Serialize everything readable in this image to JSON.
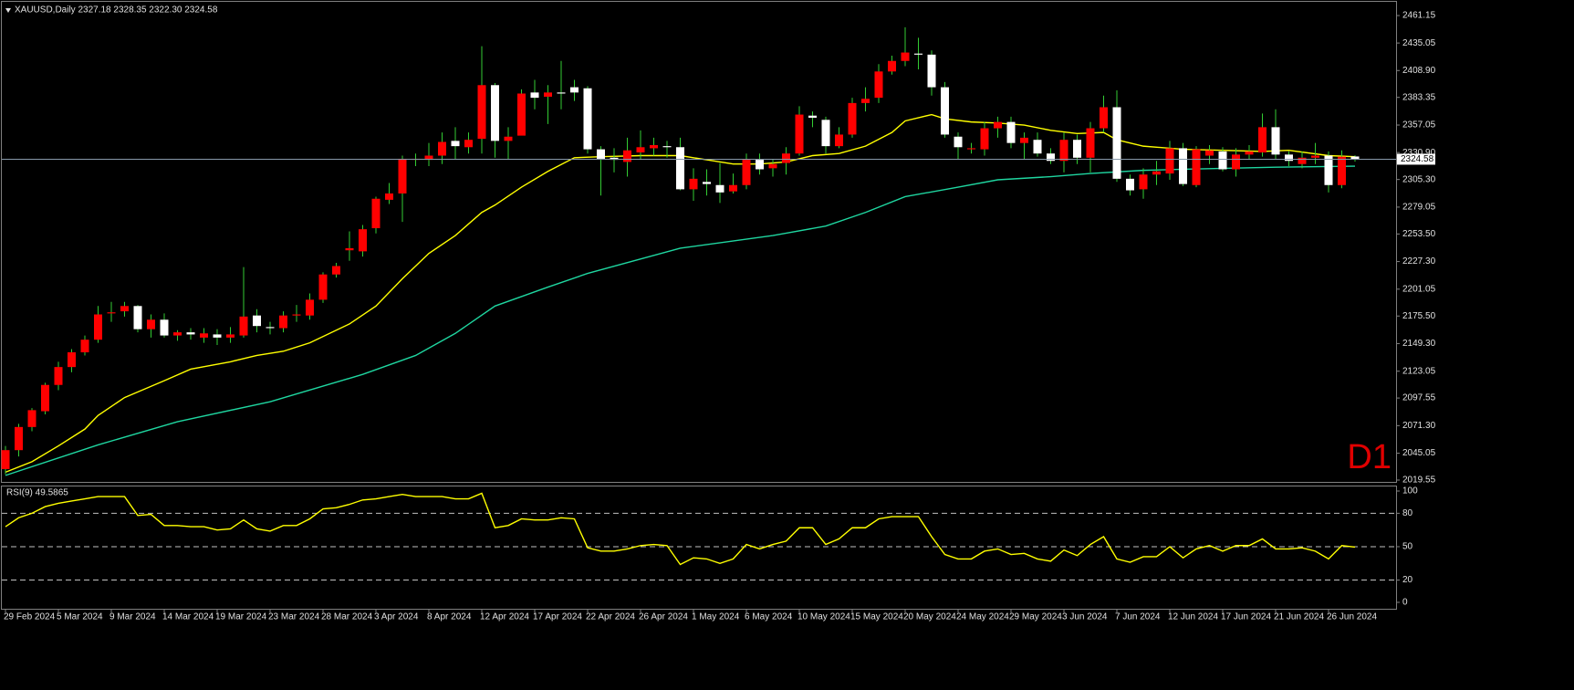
{
  "chart_data": [
    {
      "type": "candlestick",
      "title": "XAUUSD,Daily  2327.18 2328.35 2322.30 2324.58",
      "timeframe_label": "D1",
      "categories": [
        "29 Feb 2024",
        null,
        null,
        null,
        "5 Mar 2024",
        null,
        null,
        null,
        "9 Mar 2024",
        null,
        null,
        null,
        "14 Mar 2024",
        null,
        null,
        null,
        "19 Mar 2024",
        null,
        null,
        null,
        "23 Mar 2024",
        null,
        null,
        null,
        "28 Mar 2024",
        null,
        null,
        null,
        "3 Apr 2024",
        null,
        null,
        null,
        "8 Apr 2024",
        null,
        null,
        null,
        "12 Apr 2024",
        null,
        null,
        null,
        "17 Apr 2024",
        null,
        null,
        null,
        "22 Apr 2024",
        null,
        null,
        null,
        "26 Apr 2024",
        null,
        null,
        null,
        "1 May 2024",
        null,
        null,
        null,
        "6 May 2024",
        null,
        null,
        null,
        "10 May 2024",
        null,
        null,
        null,
        "15 May 2024",
        null,
        null,
        null,
        "20 May 2024",
        null,
        null,
        null,
        "24 May 2024",
        null,
        null,
        null,
        "29 May 2024",
        null,
        null,
        null,
        "3 Jun 2024",
        null,
        null,
        null,
        "7 Jun 2024",
        null,
        null,
        null,
        "12 Jun 2024",
        null,
        null,
        null,
        "17 Jun 2024",
        null,
        null,
        null,
        "21 Jun 2024",
        null,
        null,
        null,
        "26 Jun 2024",
        null,
        null
      ],
      "open": [
        2030,
        2048,
        2070,
        2085,
        2110,
        2127,
        2141,
        2153,
        2178,
        2180,
        2185,
        2163,
        2172,
        2157,
        2160,
        2155,
        2158,
        2155,
        2157,
        2176,
        2165,
        2164,
        2176,
        2176,
        2191,
        2215,
        2238,
        2237,
        2259,
        2286,
        2292,
        2324,
        2324,
        2328,
        2342,
        2336,
        2344,
        2395,
        2342,
        2347,
        2388,
        2384,
        2388,
        2393,
        2392,
        2334,
        2326,
        2322,
        2331,
        2335,
        2337,
        2336,
        2296,
        2303,
        2300,
        2294,
        2300,
        2324,
        2316,
        2321,
        2330,
        2366,
        2362,
        2337,
        2348,
        2378,
        2383,
        2408,
        2418,
        2425,
        2424,
        2393,
        2346,
        2334,
        2334,
        2354,
        2360,
        2340,
        2343,
        2330,
        2323,
        2343,
        2326,
        2354,
        2374,
        2306,
        2296,
        2310,
        2311,
        2335,
        2300,
        2328,
        2332,
        2315,
        2329,
        2331,
        2355,
        2329,
        2320,
        2326,
        2328,
        2300,
        2327.18
      ],
      "high": [
        2052,
        2073,
        2088,
        2112,
        2132,
        2144,
        2157,
        2185,
        2189,
        2189,
        2186,
        2177,
        2178,
        2162,
        2164,
        2164,
        2163,
        2165,
        2222,
        2182,
        2170,
        2180,
        2186,
        2197,
        2217,
        2226,
        2256,
        2262,
        2289,
        2302,
        2328,
        2330,
        2340,
        2350,
        2355,
        2350,
        2432,
        2397,
        2355,
        2391,
        2400,
        2395,
        2418,
        2400,
        2394,
        2337,
        2335,
        2345,
        2352,
        2345,
        2342,
        2345,
        2316,
        2315,
        2321,
        2311,
        2330,
        2330,
        2325,
        2336,
        2375,
        2370,
        2365,
        2355,
        2383,
        2393,
        2415,
        2423,
        2450,
        2440,
        2428,
        2398,
        2350,
        2340,
        2360,
        2365,
        2365,
        2350,
        2350,
        2335,
        2350,
        2348,
        2360,
        2385,
        2390,
        2310,
        2316,
        2323,
        2342,
        2340,
        2337,
        2338,
        2336,
        2335,
        2338,
        2368,
        2372,
        2332,
        2332,
        2340,
        2332,
        2333,
        2328.35
      ],
      "low": [
        2025,
        2042,
        2066,
        2082,
        2105,
        2122,
        2138,
        2150,
        2170,
        2175,
        2160,
        2155,
        2155,
        2152,
        2153,
        2150,
        2148,
        2150,
        2155,
        2160,
        2158,
        2160,
        2170,
        2172,
        2188,
        2212,
        2228,
        2232,
        2254,
        2282,
        2265,
        2318,
        2318,
        2320,
        2325,
        2330,
        2330,
        2326,
        2325,
        2348,
        2372,
        2358,
        2372,
        2380,
        2330,
        2290,
        2312,
        2308,
        2324,
        2328,
        2326,
        2295,
        2285,
        2290,
        2283,
        2292,
        2296,
        2310,
        2308,
        2310,
        2328,
        2355,
        2330,
        2335,
        2345,
        2370,
        2378,
        2405,
        2413,
        2410,
        2385,
        2345,
        2325,
        2330,
        2328,
        2345,
        2335,
        2325,
        2327,
        2320,
        2312,
        2320,
        2312,
        2350,
        2303,
        2290,
        2287,
        2300,
        2305,
        2299,
        2298,
        2320,
        2313,
        2308,
        2324,
        2327,
        2325,
        2318,
        2316,
        2320,
        2293,
        2297,
        2322.3
      ],
      "close": [
        2048,
        2070,
        2086,
        2110,
        2127,
        2141,
        2153,
        2177,
        2179,
        2185,
        2163,
        2172,
        2157,
        2160,
        2158,
        2159,
        2155,
        2158,
        2175,
        2166,
        2164,
        2176,
        2177,
        2191,
        2215,
        2223,
        2240,
        2258,
        2287,
        2292,
        2325,
        2325,
        2328,
        2341,
        2337,
        2343,
        2395,
        2342,
        2346,
        2387,
        2383,
        2388,
        2387,
        2388,
        2334,
        2325,
        2324,
        2333,
        2336,
        2338,
        2336,
        2296,
        2306,
        2301,
        2293,
        2300,
        2324,
        2315,
        2320,
        2330,
        2367,
        2364,
        2337,
        2348,
        2378,
        2382,
        2408,
        2418,
        2426,
        2424,
        2393,
        2348,
        2336,
        2335,
        2354,
        2360,
        2340,
        2345,
        2330,
        2323,
        2343,
        2326,
        2354,
        2374,
        2306,
        2295,
        2310,
        2313,
        2335,
        2301,
        2334,
        2333,
        2315,
        2329,
        2332,
        2355,
        2329,
        2323,
        2326,
        2328,
        2300,
        2327,
        2324.58
      ],
      "up_color": "#ff0000",
      "down_color": "#ffffff",
      "wick_color": "#33cc33",
      "price_line_color": "#8899aa",
      "overlays": [
        {
          "color": "#ffff00",
          "x": [
            0,
            2,
            4,
            6,
            7,
            9,
            12,
            14,
            17,
            19,
            21,
            23,
            26,
            28,
            30,
            32,
            34,
            36,
            37,
            39,
            41,
            43,
            45,
            48,
            51,
            53,
            55,
            57,
            59,
            61,
            63,
            65,
            67,
            68,
            70,
            71,
            73,
            75,
            77,
            79,
            81,
            83,
            84,
            86,
            89,
            92,
            95,
            97,
            100,
            102
          ],
          "values": [
            2027,
            2037,
            2052,
            2068,
            2081,
            2098,
            2114,
            2125,
            2132,
            2138,
            2142,
            2150,
            2168,
            2185,
            2211,
            2235,
            2252,
            2274,
            2281,
            2298,
            2313,
            2326,
            2327,
            2328,
            2328,
            2324,
            2320,
            2320,
            2322,
            2328,
            2330,
            2337,
            2350,
            2361,
            2367,
            2363,
            2360,
            2359,
            2357,
            2352,
            2349,
            2350,
            2343,
            2337,
            2334,
            2333,
            2332,
            2333,
            2328,
            2327
          ]
        },
        {
          "color": "#1fd6a0",
          "x": [
            0,
            7,
            13,
            20,
            27,
            31,
            34,
            37,
            41,
            44,
            51,
            58,
            62,
            65,
            68,
            72,
            75,
            79,
            82,
            86,
            89,
            96,
            102
          ],
          "values": [
            2024,
            2053,
            2075,
            2094,
            2120,
            2138,
            2159,
            2185,
            2203,
            2216,
            2240,
            2252,
            2261,
            2274,
            2289,
            2298,
            2305,
            2308,
            2311,
            2314,
            2315,
            2317,
            2318
          ]
        }
      ],
      "ylim": [
        2017.8,
        2471.6
      ],
      "yticks": [
        2461.15,
        2435.05,
        {
          "value": 2408.9,
          "label": "2408.90"
        },
        2383.35,
        2357.05,
        {
          "value": 2330.9,
          "label": "2330.90"
        },
        {
          "value": 2305.3,
          "label": "2305.30"
        },
        2279.05,
        {
          "value": 2253.5,
          "label": "2253.50"
        },
        {
          "value": 2227.3,
          "label": "2227.30"
        },
        2201.05,
        {
          "value": 2175.5,
          "label": "2175.50"
        },
        {
          "value": 2149.3,
          "label": "2149.30"
        },
        2123.05,
        2097.55,
        {
          "value": 2071.3,
          "label": "2071.30"
        },
        2045.05,
        2019.55
      ],
      "grid": false
    },
    {
      "type": "line",
      "title": "RSI(9) 49.5865",
      "color": "#ffff00",
      "values": [
        68,
        76,
        80,
        86,
        89,
        91,
        93,
        95,
        95,
        95,
        78,
        79,
        69,
        69,
        68,
        68,
        65,
        66,
        74,
        66,
        64,
        69,
        69,
        75,
        84,
        85,
        88,
        92,
        93,
        95,
        97,
        95,
        95,
        95,
        93,
        93,
        98,
        67,
        69,
        75,
        74,
        74,
        76,
        75,
        49,
        46,
        46,
        48,
        51,
        52,
        51,
        34,
        40,
        39,
        35,
        39,
        52,
        48,
        52,
        55,
        67,
        67,
        52,
        57,
        67,
        67,
        75,
        77,
        77,
        77,
        59,
        43,
        39,
        39,
        46,
        48,
        43,
        44,
        39,
        37,
        47,
        42,
        52,
        59,
        39,
        36,
        41,
        41,
        50,
        40,
        48,
        51,
        46,
        51,
        51,
        57,
        48,
        48,
        49,
        46,
        39,
        51,
        49.5865
      ],
      "ylim": [
        -6.6,
        104.1
      ],
      "yticks": [
        0,
        20,
        50,
        80,
        100
      ],
      "levels": [
        20,
        50,
        80
      ]
    }
  ]
}
